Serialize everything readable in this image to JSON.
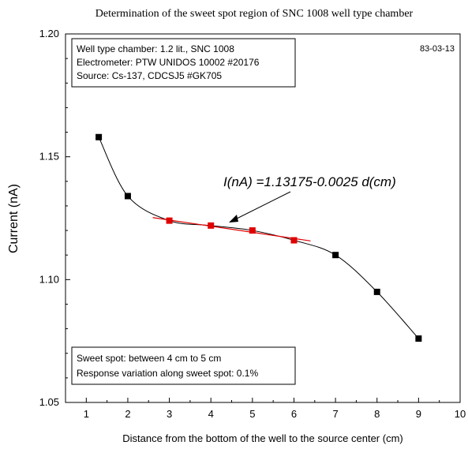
{
  "chart_data": {
    "type": "scatter",
    "title": "Determination of the sweet spot region of SNC 1008 well type chamber",
    "xlabel": "Distance from the bottom of the well to the source center (cm)",
    "ylabel": "Current (nA)",
    "xlim": [
      0.5,
      10
    ],
    "ylim": [
      1.05,
      1.2
    ],
    "xticks": [
      1,
      2,
      3,
      4,
      5,
      6,
      7,
      8,
      9,
      10
    ],
    "yticks": [
      1.05,
      1.1,
      1.15,
      1.2
    ],
    "ytick_labels": [
      "1.05",
      "1.10",
      "1.15",
      "1.20"
    ],
    "grid": false,
    "colors": {
      "black_points": "#000000",
      "red_points": "#e00000",
      "fit_line": "#e00000",
      "curve": "#000000"
    },
    "series": [
      {
        "color": "black",
        "x": [
          1.3,
          2,
          7,
          8,
          9
        ],
        "y": [
          1.158,
          1.134,
          1.11,
          1.095,
          1.076
        ]
      },
      {
        "color": "red",
        "x": [
          3,
          4,
          5,
          6
        ],
        "y": [
          1.124,
          1.122,
          1.12,
          1.116
        ]
      }
    ],
    "fit_line": {
      "slope": -0.0025,
      "intercept": 1.13175,
      "x_range": [
        2.6,
        6.4
      ]
    },
    "smooth_curve": {
      "x": [
        1.3,
        2,
        3,
        4,
        5,
        6,
        7,
        8,
        9
      ],
      "y": [
        1.158,
        1.134,
        1.124,
        1.122,
        1.12,
        1.116,
        1.11,
        1.095,
        1.076
      ]
    },
    "fit_annotation": "I(nA) =1.13175-0.0025 d(cm)",
    "info_box_lines": [
      "Well type chamber: 1.2 lit., SNC 1008",
      "Electrometer: PTW UNIDOS 10002 #20176",
      "Source: Cs-137, CDCSJ5 #GK705"
    ],
    "date": "83-03-13",
    "sweet_spot_box_lines": [
      "Sweet spot: between 4 cm to 5 cm",
      "Response variation along sweet spot: 0.1%"
    ]
  }
}
